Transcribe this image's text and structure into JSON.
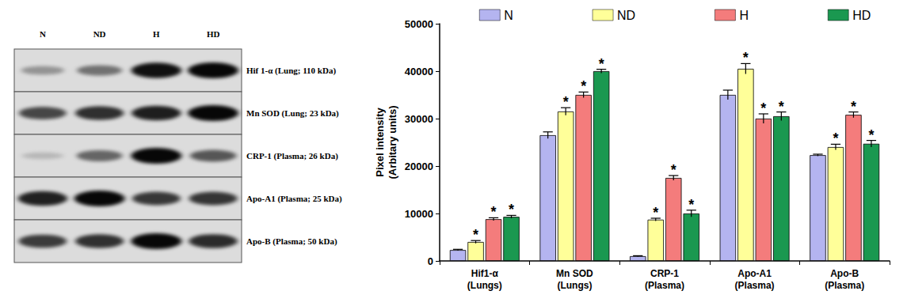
{
  "chart_data": {
    "type": "bar",
    "y_label": "Pixel intensity\n(Arbitary units)",
    "categories": [
      "Hif1-α\n(Lungs)",
      "Mn SOD\n(Lungs)",
      "CRP-1\n(Plasma)",
      "Apo-A1\n(Plasma)",
      "Apo-B\n(Plasma)"
    ],
    "series": [
      {
        "name": "N",
        "color": "#b4b4f0",
        "values": [
          2300,
          26500,
          1000,
          35000,
          22300
        ],
        "errors": [
          150,
          700,
          100,
          1000,
          200
        ]
      },
      {
        "name": "ND",
        "color": "#ffff99",
        "values": [
          4000,
          31500,
          8700,
          40500,
          24000
        ],
        "errors": [
          300,
          800,
          300,
          1100,
          600
        ],
        "annotation": "*"
      },
      {
        "name": "H",
        "color": "#f47c7c",
        "values": [
          8800,
          35000,
          17500,
          30000,
          30800
        ],
        "errors": [
          300,
          600,
          500,
          1000,
          600
        ],
        "annotation": "*"
      },
      {
        "name": "HD",
        "color": "#1a9850",
        "values": [
          9300,
          40000,
          10000,
          30500,
          24700
        ],
        "errors": [
          300,
          400,
          700,
          900,
          700
        ],
        "annotation": "*"
      }
    ],
    "ylim": [
      0,
      50000
    ],
    "yticks": [
      0,
      10000,
      20000,
      30000,
      40000,
      50000
    ],
    "grid": false,
    "legend": "top"
  },
  "blot": {
    "lanes": [
      "N",
      "ND",
      "H",
      "HD"
    ],
    "rows": [
      {
        "label": "Hif 1-α (Lung; 110 kDa)"
      },
      {
        "label": "Mn SOD (Lung; 23 kDa)"
      },
      {
        "label": "CRP-1 (Plasma; 26 kDa)"
      },
      {
        "label": "Apo-A1 (Plasma; 25 kDa)"
      },
      {
        "label": "Apo-B (Plasma; 50 kDa)"
      }
    ]
  }
}
